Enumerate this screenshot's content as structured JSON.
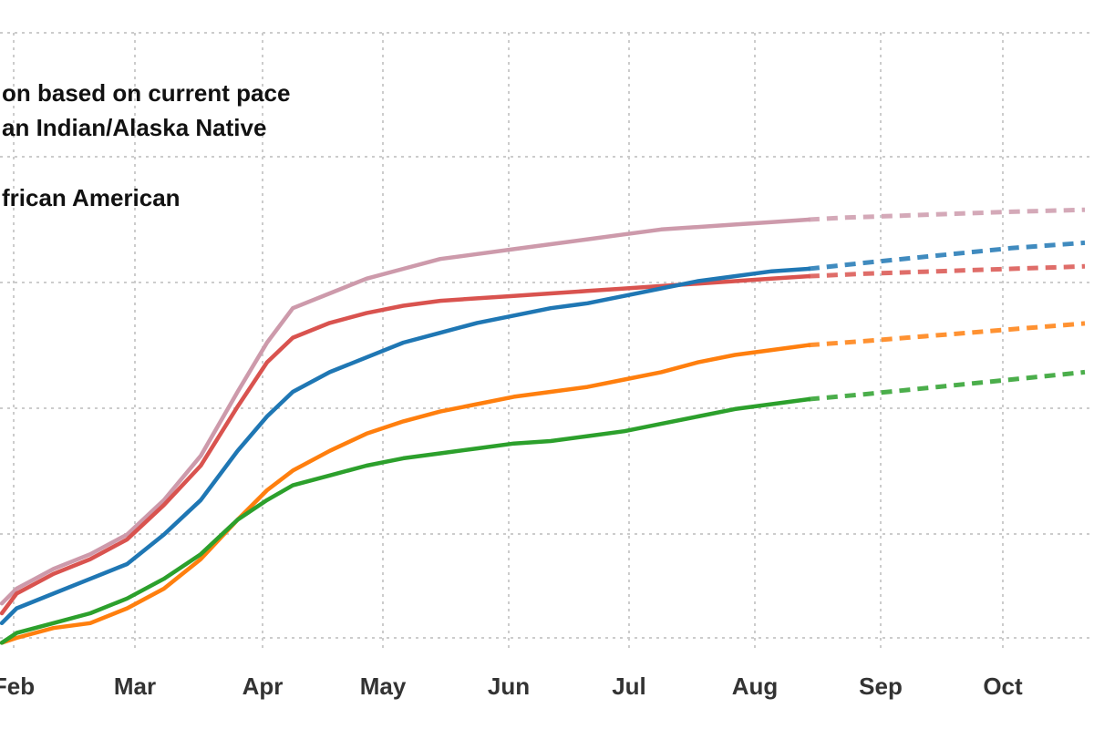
{
  "chart_data": {
    "type": "line",
    "x_tick_labels": [
      "Feb",
      "Mar",
      "Apr",
      "May",
      "Jun",
      "Jul",
      "Aug",
      "Sep",
      "Oct"
    ],
    "grid": "dotted",
    "legend_position": "top-left",
    "legend_entries": [
      "on based on current pace",
      "an Indian/Alaska Native",
      "frican American"
    ],
    "x_range_days": [
      -4,
      290
    ],
    "y_range": [
      0,
      100
    ],
    "series": [
      {
        "color": "#cd9aab",
        "values": [
          [
            -4,
            7
          ],
          [
            0,
            10
          ],
          [
            10,
            14
          ],
          [
            20,
            17
          ],
          [
            30,
            21
          ],
          [
            40,
            28
          ],
          [
            50,
            37
          ],
          [
            60,
            50
          ],
          [
            68,
            60
          ],
          [
            75,
            67
          ],
          [
            85,
            70
          ],
          [
            95,
            73
          ],
          [
            105,
            75
          ],
          [
            115,
            77
          ],
          [
            125,
            78
          ],
          [
            135,
            79
          ],
          [
            145,
            80
          ],
          [
            155,
            81
          ],
          [
            165,
            82
          ],
          [
            175,
            83
          ],
          [
            185,
            83.5
          ],
          [
            195,
            84
          ],
          [
            205,
            84.5
          ],
          [
            215,
            85
          ]
        ],
        "projection": [
          [
            215,
            85
          ],
          [
            225,
            85.4
          ],
          [
            240,
            85.8
          ],
          [
            255,
            86.2
          ],
          [
            270,
            86.6
          ],
          [
            290,
            87
          ]
        ]
      },
      {
        "color": "#d9534f",
        "values": [
          [
            -4,
            5
          ],
          [
            0,
            9
          ],
          [
            10,
            13
          ],
          [
            20,
            16
          ],
          [
            30,
            20
          ],
          [
            40,
            27
          ],
          [
            50,
            35
          ],
          [
            60,
            47
          ],
          [
            68,
            56
          ],
          [
            75,
            61
          ],
          [
            85,
            64
          ],
          [
            95,
            66
          ],
          [
            105,
            67.5
          ],
          [
            115,
            68.5
          ],
          [
            125,
            69
          ],
          [
            135,
            69.5
          ],
          [
            145,
            70
          ],
          [
            155,
            70.5
          ],
          [
            165,
            71
          ],
          [
            175,
            71.5
          ],
          [
            185,
            72
          ],
          [
            195,
            72.5
          ],
          [
            205,
            73
          ],
          [
            215,
            73.5
          ]
        ],
        "projection": [
          [
            215,
            73.5
          ],
          [
            230,
            74
          ],
          [
            250,
            74.5
          ],
          [
            270,
            75
          ],
          [
            290,
            75.5
          ]
        ]
      },
      {
        "color": "#1f77b4",
        "values": [
          [
            -4,
            3
          ],
          [
            0,
            6
          ],
          [
            10,
            9
          ],
          [
            20,
            12
          ],
          [
            30,
            15
          ],
          [
            40,
            21
          ],
          [
            50,
            28
          ],
          [
            60,
            38
          ],
          [
            68,
            45
          ],
          [
            75,
            50
          ],
          [
            85,
            54
          ],
          [
            95,
            57
          ],
          [
            105,
            60
          ],
          [
            115,
            62
          ],
          [
            125,
            64
          ],
          [
            135,
            65.5
          ],
          [
            145,
            67
          ],
          [
            155,
            68
          ],
          [
            165,
            69.5
          ],
          [
            175,
            71
          ],
          [
            185,
            72.5
          ],
          [
            195,
            73.5
          ],
          [
            205,
            74.5
          ],
          [
            215,
            75
          ]
        ],
        "projection": [
          [
            215,
            75
          ],
          [
            230,
            76.2
          ],
          [
            250,
            77.7
          ],
          [
            270,
            79.2
          ],
          [
            290,
            80.3
          ]
        ]
      },
      {
        "color": "#ff7f0e",
        "values": [
          [
            -4,
            -1
          ],
          [
            0,
            0
          ],
          [
            10,
            2
          ],
          [
            20,
            3
          ],
          [
            30,
            6
          ],
          [
            40,
            10
          ],
          [
            50,
            16
          ],
          [
            60,
            24
          ],
          [
            68,
            30
          ],
          [
            75,
            34
          ],
          [
            85,
            38
          ],
          [
            95,
            41.5
          ],
          [
            105,
            44
          ],
          [
            115,
            46
          ],
          [
            125,
            47.5
          ],
          [
            135,
            49
          ],
          [
            145,
            50
          ],
          [
            155,
            51
          ],
          [
            165,
            52.5
          ],
          [
            175,
            54
          ],
          [
            185,
            56
          ],
          [
            195,
            57.5
          ],
          [
            205,
            58.5
          ],
          [
            215,
            59.5
          ]
        ],
        "projection": [
          [
            215,
            59.5
          ],
          [
            230,
            60.3
          ],
          [
            250,
            61.5
          ],
          [
            270,
            62.7
          ],
          [
            290,
            63.9
          ]
        ]
      },
      {
        "color": "#2ca02c",
        "values": [
          [
            -4,
            -1
          ],
          [
            0,
            1
          ],
          [
            10,
            3
          ],
          [
            20,
            5
          ],
          [
            30,
            8
          ],
          [
            40,
            12
          ],
          [
            50,
            17
          ],
          [
            60,
            24
          ],
          [
            68,
            28
          ],
          [
            75,
            31
          ],
          [
            85,
            33
          ],
          [
            95,
            35
          ],
          [
            105,
            36.5
          ],
          [
            115,
            37.5
          ],
          [
            125,
            38.5
          ],
          [
            135,
            39.5
          ],
          [
            145,
            40
          ],
          [
            155,
            41
          ],
          [
            165,
            42
          ],
          [
            175,
            43.5
          ],
          [
            185,
            45
          ],
          [
            195,
            46.5
          ],
          [
            205,
            47.5
          ],
          [
            215,
            48.5
          ]
        ],
        "projection": [
          [
            215,
            48.5
          ],
          [
            230,
            49.5
          ],
          [
            250,
            51
          ],
          [
            270,
            52.5
          ],
          [
            290,
            54
          ]
        ]
      }
    ]
  }
}
